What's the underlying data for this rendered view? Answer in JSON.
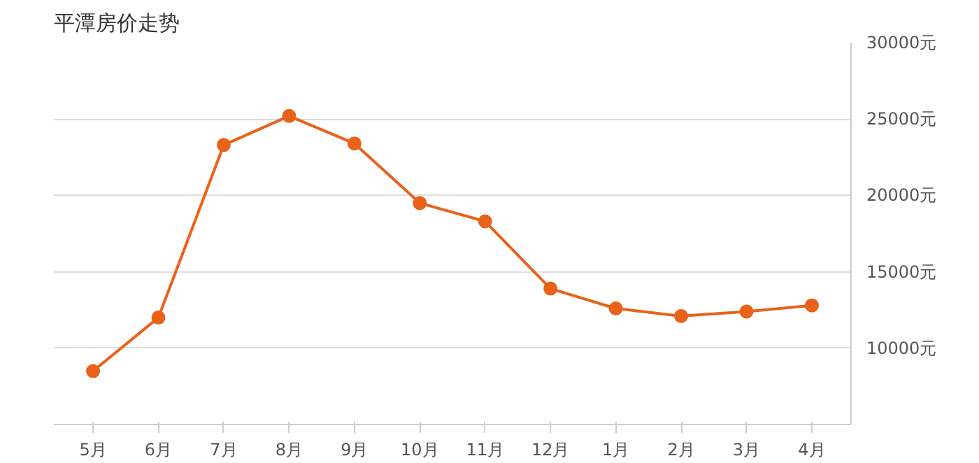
{
  "chart_data": {
    "type": "line",
    "title": "平潭房价走势",
    "categories": [
      "5月",
      "6月",
      "7月",
      "8月",
      "9月",
      "10月",
      "11月",
      "12月",
      "1月",
      "2月",
      "3月",
      "4月"
    ],
    "series": [
      {
        "color": "#e8621a",
        "values": [
          8500,
          12000,
          23300,
          25200,
          23400,
          19500,
          18300,
          13900,
          12600,
          12100,
          12400,
          12800
        ]
      }
    ],
    "ylim": [
      5000,
      30000
    ],
    "yticks": [
      {
        "value": 10000,
        "label": "10000元"
      },
      {
        "value": 15000,
        "label": "15000元"
      },
      {
        "value": 20000,
        "label": "20000元"
      },
      {
        "value": 25000,
        "label": "25000元"
      },
      {
        "value": 30000,
        "label": "30000元"
      }
    ],
    "grid": "y",
    "marker": "circle",
    "line_style": "solid"
  }
}
